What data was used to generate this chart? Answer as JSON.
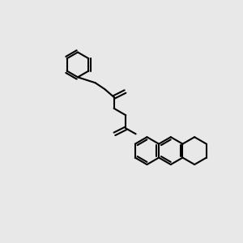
{
  "background_color": "#e8e8e8",
  "bond_color": "#000000",
  "N_color": "#0000ff",
  "O_color": "#ff0000",
  "H_color": "#808080",
  "line_width": 1.5,
  "font_size": 9,
  "fig_width": 3.0,
  "fig_height": 3.0,
  "dpi": 100
}
